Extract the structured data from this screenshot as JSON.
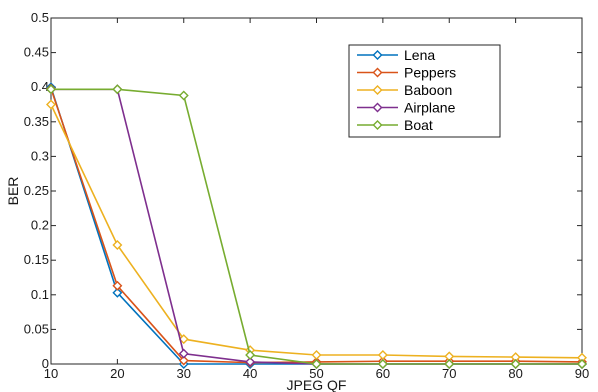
{
  "chart_data": {
    "type": "line",
    "title": "",
    "xlabel": "JPEG QF",
    "ylabel": "BER",
    "xlim": [
      10,
      90
    ],
    "ylim": [
      0,
      0.5
    ],
    "x_ticks": [
      "10",
      "20",
      "30",
      "40",
      "50",
      "60",
      "70",
      "80",
      "90"
    ],
    "y_ticks": [
      "0",
      "0.05",
      "0.1",
      "0.15",
      "0.2",
      "0.25",
      "0.3",
      "0.35",
      "0.4",
      "0.45",
      "0.5"
    ],
    "grid": false,
    "legend_position": "top-right",
    "x": [
      10,
      20,
      30,
      40,
      50,
      60,
      70,
      80,
      90
    ],
    "series": [
      {
        "name": "Lena",
        "color": "#0072BD",
        "marker": "diamond",
        "values": [
          0.4,
          0.103,
          0.0,
          0.0,
          0.0,
          0.0,
          0.0,
          0.0,
          0.0
        ]
      },
      {
        "name": "Peppers",
        "color": "#D95319",
        "marker": "diamond",
        "values": [
          0.398,
          0.113,
          0.005,
          0.002,
          0.003,
          0.004,
          0.004,
          0.004,
          0.003
        ]
      },
      {
        "name": "Baboon",
        "color": "#EDB120",
        "marker": "diamond",
        "values": [
          0.375,
          0.172,
          0.036,
          0.02,
          0.013,
          0.013,
          0.011,
          0.01,
          0.009
        ]
      },
      {
        "name": "Airplane",
        "color": "#7E2F8E",
        "marker": "diamond",
        "values": [
          0.397,
          0.397,
          0.015,
          0.003,
          0.0,
          0.0,
          0.0,
          0.0,
          0.0
        ]
      },
      {
        "name": "Boat",
        "color": "#77AC30",
        "marker": "diamond",
        "values": [
          0.397,
          0.397,
          0.388,
          0.013,
          0.0,
          0.0,
          0.0,
          0.0,
          0.0
        ]
      }
    ]
  }
}
